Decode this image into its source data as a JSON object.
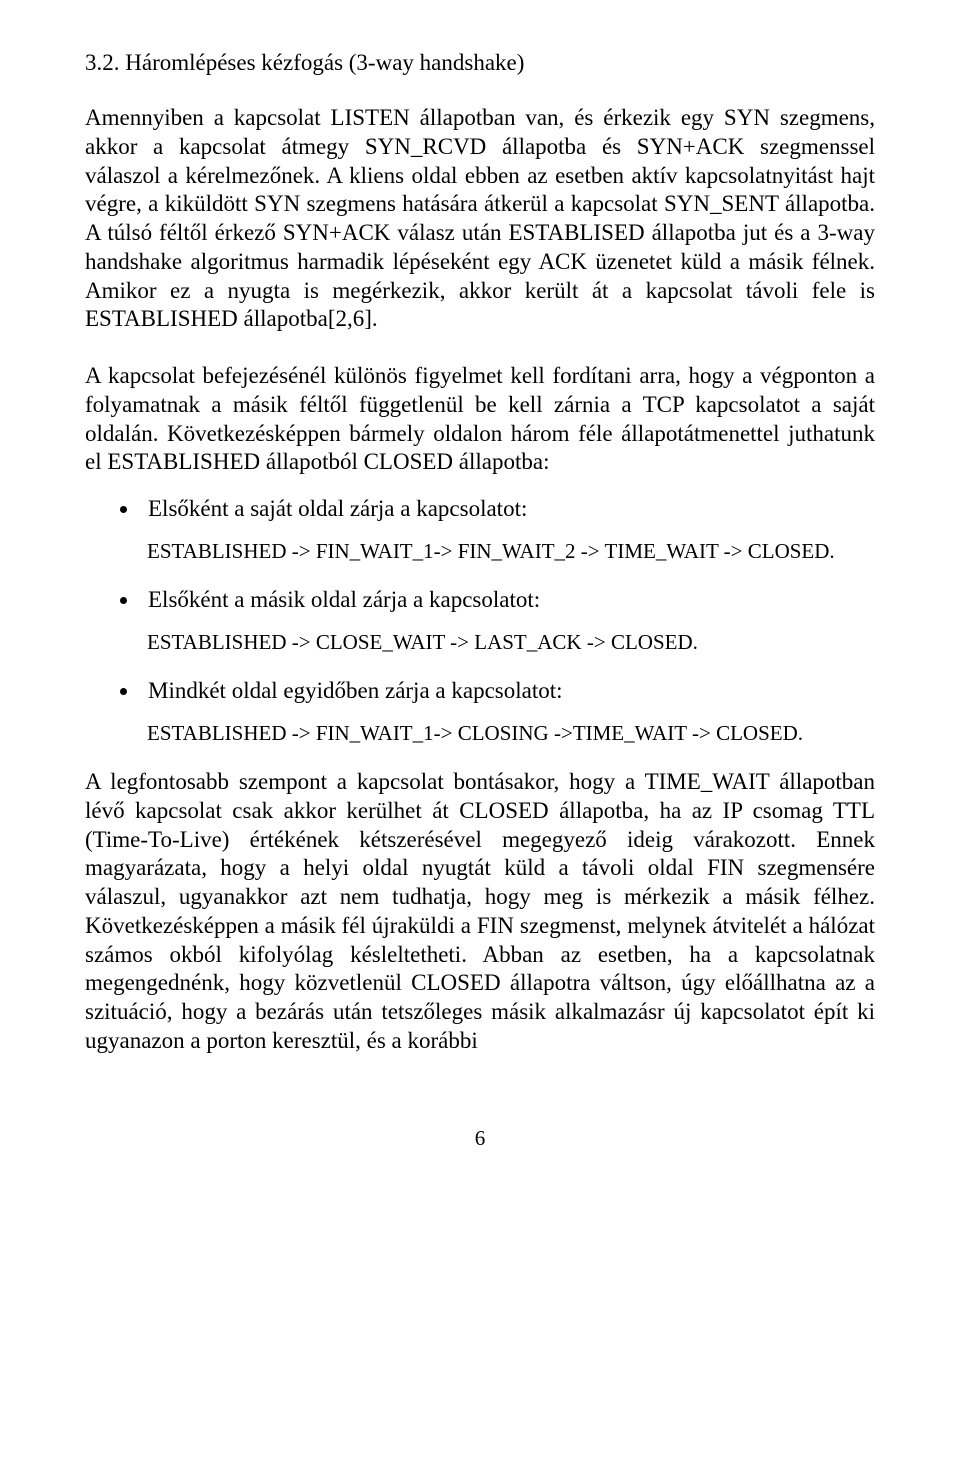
{
  "section": {
    "number": "3.2.",
    "title": "Háromlépéses kézfogás (3-way handshake)"
  },
  "paragraphs": {
    "p1": "Amennyiben a kapcsolat LISTEN állapotban van, és érkezik egy SYN szegmens, akkor a kapcsolat átmegy SYN_RCVD állapotba és SYN+ACK szegmenssel válaszol a kérelmezőnek. A kliens oldal ebben az esetben aktív kapcsolatnyitást hajt végre, a kiküldött SYN szegmens hatására átkerül a kapcsolat SYN_SENT állapotba. A túlsó féltől érkező SYN+ACK válasz után ESTABLISED állapotba jut és a 3-way handshake algoritmus harmadik lépéseként egy ACK üzenetet küld a másik félnek. Amikor ez a nyugta is megérkezik, akkor került át a kapcsolat távoli fele is ESTABLISHED állapotba[2,6].",
    "p2": "A kapcsolat befejezésénél különös figyelmet kell fordítani arra, hogy a végponton a folyamatnak a másik féltől függetlenül be kell zárnia a TCP kapcsolatot a saját oldalán. Következésképpen bármely oldalon három féle állapotátmenettel juthatunk el ESTABLISHED állapotból CLOSED állapotba:",
    "p3": "A legfontosabb szempont a kapcsolat bontásakor, hogy a TIME_WAIT állapotban lévő kapcsolat csak akkor kerülhet át CLOSED állapotba, ha az IP csomag TTL (Time-To-Live) értékének kétszerésével megegyező ideig várakozott. Ennek magyarázata, hogy a helyi oldal nyugtát küld a távoli oldal FIN szegmensére válaszul, ugyanakkor azt nem tudhatja, hogy meg is mérkezik a másik félhez. Következésképpen a másik fél újraküldi a FIN szegmenst, melynek átvitelét a hálózat számos okból kifolyólag késleltetheti. Abban az esetben, ha a kapcsolatnak megengednénk, hogy közvetlenül CLOSED állapotra váltson, úgy előállhatna az a szituáció, hogy a bezárás után tetszőleges másik alkalmazásr új kapcsolatot épít ki ugyanazon a porton keresztül, és a korábbi"
  },
  "close_list": {
    "item1": {
      "label": "Elsőként a saját oldal zárja a kapcsolatot:",
      "state": "ESTABLISHED -> FIN_WAIT_1-> FIN_WAIT_2 -> TIME_WAIT -> CLOSED."
    },
    "item2": {
      "label": "Elsőként a másik oldal zárja a kapcsolatot:",
      "state": "ESTABLISHED -> CLOSE_WAIT -> LAST_ACK -> CLOSED."
    },
    "item3": {
      "label": "Mindkét oldal egyidőben zárja a kapcsolatot:",
      "state": "ESTABLISHED -> FIN_WAIT_1-> CLOSING ->TIME_WAIT -> CLOSED."
    }
  },
  "page_number": "6"
}
